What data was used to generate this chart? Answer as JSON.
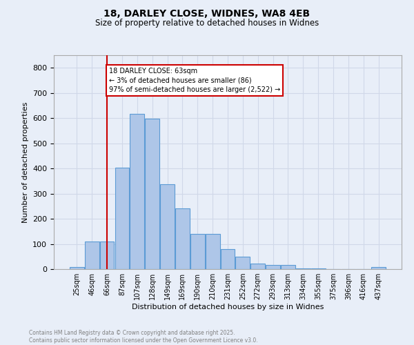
{
  "title_line1": "18, DARLEY CLOSE, WIDNES, WA8 4EB",
  "title_line2": "Size of property relative to detached houses in Widnes",
  "xlabel": "Distribution of detached houses by size in Widnes",
  "ylabel": "Number of detached properties",
  "bin_labels": [
    "25sqm",
    "46sqm",
    "66sqm",
    "87sqm",
    "107sqm",
    "128sqm",
    "149sqm",
    "169sqm",
    "190sqm",
    "210sqm",
    "231sqm",
    "252sqm",
    "272sqm",
    "293sqm",
    "313sqm",
    "334sqm",
    "355sqm",
    "375sqm",
    "396sqm",
    "416sqm",
    "437sqm"
  ],
  "bar_heights": [
    7,
    110,
    110,
    404,
    617,
    597,
    336,
    240,
    140,
    140,
    80,
    50,
    22,
    16,
    16,
    4,
    2,
    1,
    1,
    0,
    7
  ],
  "bar_color": "#aec6e8",
  "bar_edge_color": "#5b9bd5",
  "vline_x": 2,
  "vline_color": "#cc0000",
  "annotation_text": "18 DARLEY CLOSE: 63sqm\n← 3% of detached houses are smaller (86)\n97% of semi-detached houses are larger (2,522) →",
  "annotation_box_color": "#cc0000",
  "annotation_fill": "#ffffff",
  "ylim": [
    0,
    850
  ],
  "yticks": [
    0,
    100,
    200,
    300,
    400,
    500,
    600,
    700,
    800
  ],
  "grid_color": "#d0d8e8",
  "background_color": "#e8eef8",
  "footer_text": "Contains HM Land Registry data © Crown copyright and database right 2025.\nContains public sector information licensed under the Open Government Licence v3.0.",
  "footer_color": "#808080"
}
